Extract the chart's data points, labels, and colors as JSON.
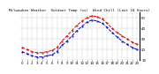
{
  "title": "Milwaukee Weather  Outdoor Temp (vs)  Wind Chill (Last 24 Hours)",
  "bg_color": "#ffffff",
  "plot_bg": "#ffffff",
  "red_line": [
    22,
    20,
    18,
    17,
    17,
    18,
    19,
    22,
    28,
    33,
    38,
    43,
    47,
    50,
    52,
    51,
    49,
    45,
    40,
    36,
    33,
    30,
    27,
    25
  ],
  "blue_line": [
    18,
    16,
    14,
    13,
    13,
    14,
    15,
    18,
    24,
    28,
    33,
    38,
    42,
    46,
    48,
    47,
    45,
    41,
    36,
    32,
    28,
    25,
    22,
    20
  ],
  "x_labels": [
    "0",
    "1",
    "2",
    "3",
    "4",
    "5",
    "6",
    "7",
    "8",
    "9",
    "10",
    "11",
    "12",
    "13",
    "14",
    "15",
    "16",
    "17",
    "18",
    "19",
    "20",
    "21",
    "22",
    "23"
  ],
  "ylim": [
    10,
    55
  ],
  "yticks": [
    10,
    20,
    30,
    40,
    50
  ],
  "grid_color": "#999999",
  "red_color": "#cc0000",
  "blue_color": "#0000cc",
  "title_fontsize": 3.0,
  "tick_fontsize": 2.8,
  "ylabel_right_fontsize": 2.8,
  "line_width": 0.7,
  "marker_size": 1.0
}
